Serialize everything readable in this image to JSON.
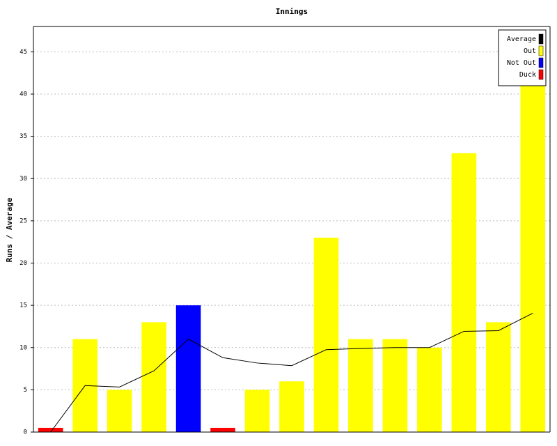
{
  "chart_data": {
    "type": "bar",
    "title": "Innings",
    "y_label": "Runs / Average",
    "categories": [
      null,
      null,
      null,
      null,
      null,
      null,
      null,
      null,
      null,
      null,
      null,
      null,
      null,
      null,
      null
    ],
    "series": [
      {
        "name": "Average",
        "type": "line",
        "color": "#000000",
        "values": [
          0,
          5.5,
          5.33,
          7.25,
          11,
          8.8,
          8.17,
          7.86,
          9.75,
          9.89,
          10,
          10,
          11.92,
          12,
          14.07
        ]
      },
      {
        "name": "Out",
        "color": "#ffff00",
        "values": [
          null,
          11,
          5,
          13,
          null,
          null,
          5,
          6,
          23,
          11,
          11,
          10,
          33,
          13,
          41
        ]
      },
      {
        "name": "Not Out",
        "color": "#0000ff",
        "values": [
          null,
          null,
          null,
          null,
          15,
          null,
          null,
          null,
          null,
          null,
          null,
          null,
          null,
          null,
          null
        ]
      },
      {
        "name": "Duck",
        "color": "#ff0000",
        "values": [
          0.5,
          null,
          null,
          null,
          null,
          0.5,
          null,
          null,
          null,
          null,
          null,
          null,
          null,
          null,
          null
        ]
      }
    ],
    "ylim": [
      0,
      48
    ],
    "yticks": [
      0,
      5,
      10,
      15,
      20,
      25,
      30,
      35,
      40,
      45
    ],
    "grid": true,
    "legend": "top-right"
  }
}
